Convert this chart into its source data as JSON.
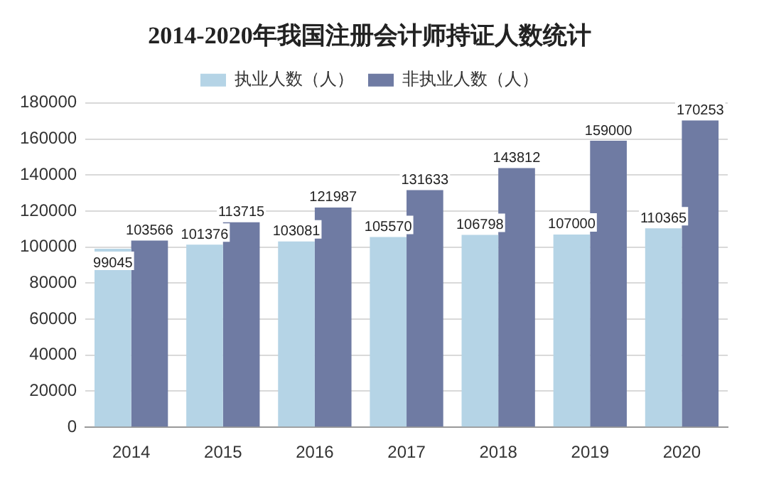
{
  "chart_data": {
    "type": "bar",
    "title": "2014-2020年我国注册会计师持证人数统计",
    "categories": [
      "2014",
      "2015",
      "2016",
      "2017",
      "2018",
      "2019",
      "2020"
    ],
    "series": [
      {
        "name": "执业人数（人）",
        "color": "#b5d4e6",
        "values": [
          99045,
          101376,
          103081,
          105570,
          106798,
          107000,
          110365
        ]
      },
      {
        "name": "非执业人数（人）",
        "color": "#6f7ba3",
        "values": [
          103566,
          113715,
          121987,
          131633,
          143812,
          159000,
          170253
        ]
      }
    ],
    "ylim": [
      0,
      180000
    ],
    "yticks": [
      0,
      20000,
      40000,
      60000,
      80000,
      100000,
      120000,
      140000,
      160000,
      180000
    ],
    "grid": "y",
    "legend": "top",
    "data_labels": true
  }
}
